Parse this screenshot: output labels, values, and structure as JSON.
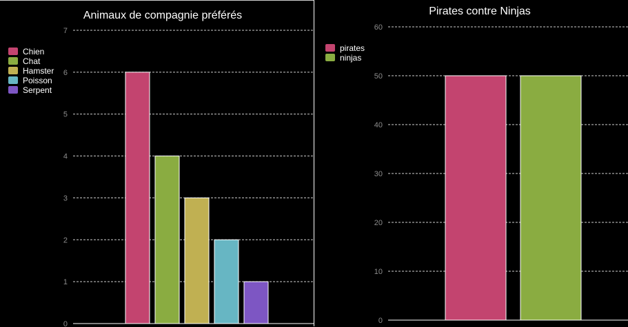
{
  "chart_data": [
    {
      "type": "bar",
      "title": "Animaux de compagnie préférés",
      "categories": [
        "Chien",
        "Chat",
        "Hamster",
        "Poisson",
        "Serpent"
      ],
      "values": [
        6,
        4,
        3,
        2,
        1
      ],
      "colors": [
        "#c3446f",
        "#8aac41",
        "#c0b052",
        "#67b6c3",
        "#7d56c3"
      ],
      "ylim": [
        0,
        7
      ],
      "yticks": [
        0,
        1,
        2,
        3,
        4,
        5,
        6,
        7
      ],
      "grid": true,
      "legend": "top-left",
      "xlabel": "",
      "ylabel": ""
    },
    {
      "type": "bar",
      "title": "Pirates contre Ninjas",
      "categories": [
        "pirates",
        "ninjas"
      ],
      "values": [
        50,
        50
      ],
      "colors": [
        "#c3446f",
        "#8aac41"
      ],
      "ylim": [
        0,
        60
      ],
      "yticks": [
        0,
        10,
        20,
        30,
        40,
        50,
        60
      ],
      "grid": true,
      "legend": "top-left",
      "xlabel": "",
      "ylabel": ""
    }
  ]
}
